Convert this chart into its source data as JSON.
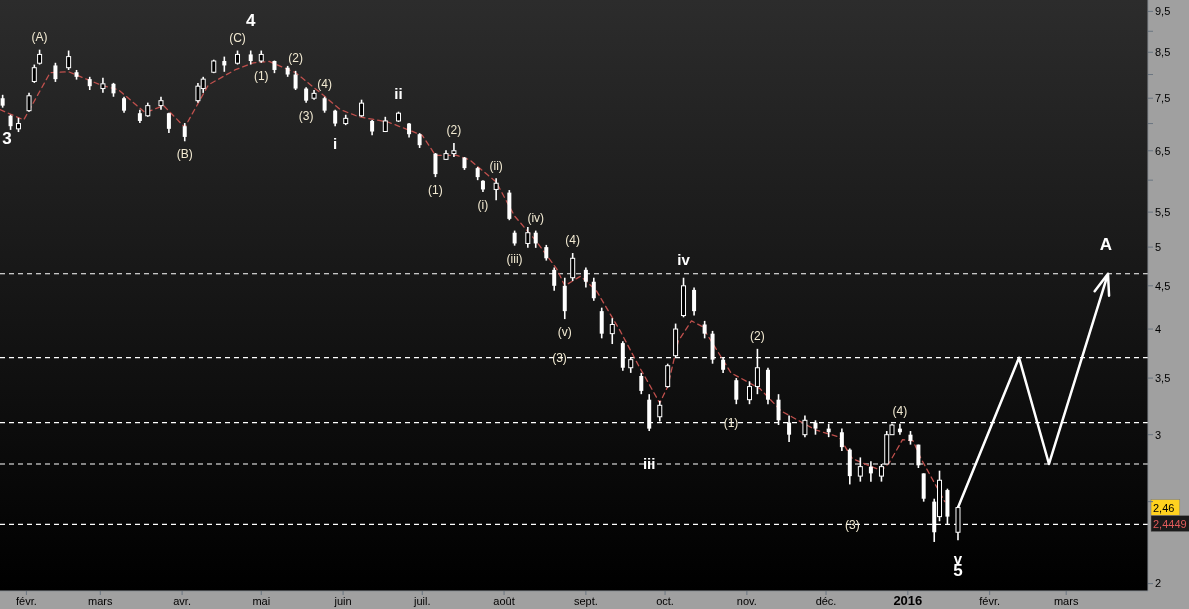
{
  "chart_data": {
    "type": "candlestick",
    "log": "y",
    "x": [
      "2015-01-23",
      "2015-01-26",
      "2015-01-29",
      "2015-02-02",
      "2015-02-04",
      "2015-02-06",
      "2015-02-12",
      "2015-02-17",
      "2015-02-20",
      "2015-02-25",
      "2015-03-02",
      "2015-03-06",
      "2015-03-10",
      "2015-03-16",
      "2015-03-19",
      "2015-03-24",
      "2015-03-27",
      "2015-04-02",
      "2015-04-07",
      "2015-04-09",
      "2015-04-13",
      "2015-04-17",
      "2015-04-22",
      "2015-04-27",
      "2015-05-01",
      "2015-05-06",
      "2015-05-11",
      "2015-05-14",
      "2015-05-18",
      "2015-05-21",
      "2015-05-25",
      "2015-05-29",
      "2015-06-02",
      "2015-06-08",
      "2015-06-12",
      "2015-06-17",
      "2015-06-22",
      "2015-06-26",
      "2015-06-30",
      "2015-07-06",
      "2015-07-10",
      "2015-07-13",
      "2015-07-17",
      "2015-07-22",
      "2015-07-24",
      "2015-07-29",
      "2015-08-03",
      "2015-08-05",
      "2015-08-10",
      "2015-08-13",
      "2015-08-17",
      "2015-08-20",
      "2015-08-24",
      "2015-08-27",
      "2015-09-01",
      "2015-09-04",
      "2015-09-07",
      "2015-09-11",
      "2015-09-15",
      "2015-09-18",
      "2015-09-22",
      "2015-09-25",
      "2015-09-29",
      "2015-10-02",
      "2015-10-05",
      "2015-10-08",
      "2015-10-12",
      "2015-10-16",
      "2015-10-19",
      "2015-10-23",
      "2015-10-28",
      "2015-11-02",
      "2015-11-05",
      "2015-11-09",
      "2015-11-13",
      "2015-11-17",
      "2015-11-23",
      "2015-11-27",
      "2015-12-02",
      "2015-12-07",
      "2015-12-10",
      "2015-12-14",
      "2015-12-18",
      "2015-12-22",
      "2015-12-24",
      "2015-12-26",
      "2015-12-29",
      "2016-01-02",
      "2016-01-05",
      "2016-01-07",
      "2016-01-11",
      "2016-01-13",
      "2016-01-16",
      "2016-01-20"
    ],
    "ohlc": [
      [
        7.5,
        7.57,
        7.31,
        7.35
      ],
      [
        7.15,
        7.17,
        6.88,
        6.95
      ],
      [
        6.9,
        7.11,
        6.84,
        7.0
      ],
      [
        7.25,
        7.61,
        7.23,
        7.55
      ],
      [
        7.85,
        8.22,
        7.82,
        8.15
      ],
      [
        8.25,
        8.56,
        8.22,
        8.45
      ],
      [
        8.2,
        8.26,
        7.84,
        7.9
      ],
      [
        8.15,
        8.54,
        8.1,
        8.4
      ],
      [
        8.05,
        8.1,
        7.89,
        7.95
      ],
      [
        7.9,
        7.95,
        7.67,
        7.75
      ],
      [
        7.7,
        7.93,
        7.61,
        7.8
      ],
      [
        7.8,
        7.82,
        7.53,
        7.6
      ],
      [
        7.5,
        7.53,
        7.21,
        7.25
      ],
      [
        7.2,
        7.27,
        7.01,
        7.05
      ],
      [
        7.15,
        7.41,
        7.13,
        7.35
      ],
      [
        7.35,
        7.53,
        7.27,
        7.45
      ],
      [
        7.2,
        7.21,
        6.82,
        6.9
      ],
      [
        6.95,
        7.01,
        6.67,
        6.75
      ],
      [
        7.45,
        7.82,
        7.41,
        7.75
      ],
      [
        7.7,
        7.95,
        7.61,
        7.9
      ],
      [
        8.05,
        8.33,
        8.03,
        8.3
      ],
      [
        8.3,
        8.4,
        8.06,
        8.2
      ],
      [
        8.25,
        8.54,
        8.22,
        8.45
      ],
      [
        8.45,
        8.54,
        8.22,
        8.3
      ],
      [
        8.3,
        8.54,
        8.26,
        8.45
      ],
      [
        8.3,
        8.31,
        8.03,
        8.1
      ],
      [
        8.15,
        8.19,
        7.95,
        8.0
      ],
      [
        8.0,
        8.08,
        7.67,
        7.7
      ],
      [
        7.7,
        7.73,
        7.41,
        7.45
      ],
      [
        7.5,
        7.67,
        7.47,
        7.6
      ],
      [
        7.5,
        7.53,
        7.21,
        7.25
      ],
      [
        7.25,
        7.27,
        6.95,
        7.0
      ],
      [
        7.0,
        7.17,
        6.97,
        7.1
      ],
      [
        7.15,
        7.47,
        7.13,
        7.4
      ],
      [
        7.05,
        7.07,
        6.78,
        6.85
      ],
      [
        6.85,
        7.13,
        6.84,
        7.05
      ],
      [
        7.05,
        7.23,
        7.03,
        7.2
      ],
      [
        7.0,
        7.01,
        6.74,
        6.8
      ],
      [
        6.8,
        6.82,
        6.55,
        6.6
      ],
      [
        6.45,
        6.46,
        6.05,
        6.1
      ],
      [
        6.35,
        6.51,
        6.34,
        6.45
      ],
      [
        6.45,
        6.64,
        6.39,
        6.5
      ],
      [
        6.38,
        6.39,
        6.17,
        6.2
      ],
      [
        6.2,
        6.22,
        6.0,
        6.05
      ],
      [
        5.99,
        6.0,
        5.81,
        5.85
      ],
      [
        5.85,
        6.03,
        5.68,
        5.95
      ],
      [
        5.8,
        5.84,
        5.38,
        5.4
      ],
      [
        5.2,
        5.23,
        5.02,
        5.05
      ],
      [
        5.05,
        5.28,
        4.99,
        5.2
      ],
      [
        5.2,
        5.23,
        4.99,
        5.05
      ],
      [
        5.0,
        5.03,
        4.82,
        4.85
      ],
      [
        4.7,
        4.73,
        4.44,
        4.5
      ],
      [
        4.5,
        4.6,
        4.11,
        4.2
      ],
      [
        4.6,
        4.92,
        4.56,
        4.85
      ],
      [
        4.7,
        4.73,
        4.48,
        4.55
      ],
      [
        4.55,
        4.6,
        4.32,
        4.35
      ],
      [
        4.2,
        4.24,
        3.9,
        3.95
      ],
      [
        3.95,
        4.12,
        3.84,
        4.05
      ],
      [
        3.85,
        3.87,
        3.57,
        3.6
      ],
      [
        3.6,
        3.7,
        3.55,
        3.68
      ],
      [
        3.52,
        3.55,
        3.35,
        3.38
      ],
      [
        3.3,
        3.35,
        3.03,
        3.05
      ],
      [
        3.15,
        3.29,
        3.11,
        3.25
      ],
      [
        3.42,
        3.64,
        3.41,
        3.62
      ],
      [
        3.72,
        4.06,
        3.7,
        4.0
      ],
      [
        4.15,
        4.6,
        4.13,
        4.5
      ],
      [
        4.45,
        4.48,
        4.15,
        4.2
      ],
      [
        4.05,
        4.09,
        3.9,
        3.95
      ],
      [
        3.95,
        3.98,
        3.64,
        3.68
      ],
      [
        3.68,
        3.7,
        3.55,
        3.58
      ],
      [
        3.48,
        3.5,
        3.26,
        3.3
      ],
      [
        3.3,
        3.47,
        3.26,
        3.42
      ],
      [
        3.42,
        3.79,
        3.35,
        3.6
      ],
      [
        3.58,
        3.6,
        3.26,
        3.3
      ],
      [
        3.3,
        3.35,
        3.08,
        3.12
      ],
      [
        3.1,
        3.16,
        2.94,
        3.0
      ],
      [
        3.0,
        3.16,
        2.98,
        3.12
      ],
      [
        3.1,
        3.12,
        3.0,
        3.05
      ],
      [
        3.05,
        3.09,
        2.98,
        3.02
      ],
      [
        3.02,
        3.05,
        2.87,
        2.9
      ],
      [
        2.88,
        2.89,
        2.62,
        2.68
      ],
      [
        2.68,
        2.82,
        2.64,
        2.75
      ],
      [
        2.75,
        2.79,
        2.64,
        2.7
      ],
      [
        2.68,
        2.77,
        2.64,
        2.75
      ],
      [
        2.77,
        3.03,
        2.77,
        3.0
      ],
      [
        3.0,
        3.09,
        3.0,
        3.08
      ],
      [
        3.05,
        3.09,
        3.0,
        3.02
      ],
      [
        3.0,
        3.03,
        2.92,
        2.95
      ],
      [
        2.92,
        2.92,
        2.74,
        2.76
      ],
      [
        2.7,
        2.7,
        2.5,
        2.52
      ],
      [
        2.5,
        2.52,
        2.24,
        2.3
      ],
      [
        2.4,
        2.72,
        2.37,
        2.65
      ],
      [
        2.58,
        2.59,
        2.35,
        2.4
      ],
      [
        2.3,
        2.47,
        2.25,
        2.46
      ]
    ],
    "color": "#ffffff",
    "series": [
      {
        "type": "line",
        "color": "#c0504d",
        "line_style": "dashed",
        "x": [
          "2015-01-22",
          "2015-01-31",
          "2015-02-10",
          "2015-02-17",
          "2015-03-01",
          "2015-03-08",
          "2015-03-18",
          "2015-03-25",
          "2015-04-02",
          "2015-04-11",
          "2015-04-21",
          "2015-04-28",
          "2015-05-04",
          "2015-05-14",
          "2015-05-23",
          "2015-05-31",
          "2015-06-07",
          "2015-06-18",
          "2015-07-01",
          "2015-07-06",
          "2015-07-14",
          "2015-07-19",
          "2015-07-29",
          "2015-08-05",
          "2015-08-13",
          "2015-08-21",
          "2015-08-24",
          "2015-08-30",
          "2015-09-05",
          "2015-09-14",
          "2015-09-21",
          "2015-09-29",
          "2015-10-02",
          "2015-10-06",
          "2015-10-11",
          "2015-10-15",
          "2015-10-26",
          "2015-11-06",
          "2015-11-14",
          "2015-11-27",
          "2015-12-06",
          "2015-12-11",
          "2015-12-22",
          "2015-12-25",
          "2015-12-30",
          "2016-01-03",
          "2016-01-06",
          "2016-01-15"
        ],
        "values": [
          7.27,
          7.07,
          8.04,
          8.06,
          7.78,
          7.67,
          7.21,
          7.35,
          6.93,
          7.78,
          8.1,
          8.26,
          8.29,
          8.04,
          7.63,
          7.27,
          7.13,
          7.03,
          6.78,
          6.42,
          6.42,
          6.34,
          5.97,
          5.44,
          5.09,
          4.71,
          4.5,
          4.62,
          4.44,
          3.98,
          3.62,
          3.27,
          3.42,
          3.87,
          4.09,
          4.03,
          3.55,
          3.4,
          3.2,
          3.04,
          2.98,
          2.81,
          2.72,
          2.78,
          2.96,
          2.95,
          2.81,
          2.5
        ]
      }
    ],
    "xlim": [
      "2015-01-22",
      "2016-04-01"
    ],
    "xticks": [
      {
        "value": "2015-02-01",
        "label": "févr."
      },
      {
        "value": "2015-03-01",
        "label": "mars"
      },
      {
        "value": "2015-04-01",
        "label": "avr."
      },
      {
        "value": "2015-05-01",
        "label": "mai"
      },
      {
        "value": "2015-06-01",
        "label": "juin"
      },
      {
        "value": "2015-07-01",
        "label": "juil."
      },
      {
        "value": "2015-08-01",
        "label": "août"
      },
      {
        "value": "2015-09-01",
        "label": "sept."
      },
      {
        "value": "2015-10-01",
        "label": "oct."
      },
      {
        "value": "2015-11-01",
        "label": "nov."
      },
      {
        "value": "2015-12-01",
        "label": "déc."
      },
      {
        "value": "2016-01-01",
        "label": "2016"
      },
      {
        "value": "2016-02-01",
        "label": "févr."
      },
      {
        "value": "2016-03-01",
        "label": "mars"
      }
    ],
    "ylim": [
      1.96,
      9.8
    ],
    "yticks": [
      {
        "value": 9.5,
        "label": "9,5"
      },
      {
        "value": 9,
        "label": null
      },
      {
        "value": 8.5,
        "label": "8,5"
      },
      {
        "value": 8,
        "label": null
      },
      {
        "value": 7.5,
        "label": "7,5"
      },
      {
        "value": 7,
        "label": null
      },
      {
        "value": 6.5,
        "label": "6,5"
      },
      {
        "value": 6,
        "label": null
      },
      {
        "value": 5.5,
        "label": "5,5"
      },
      5,
      {
        "value": 4.5,
        "label": "4,5"
      },
      4,
      {
        "value": 3.5,
        "label": "3,5"
      },
      3,
      {
        "value": 2.5,
        "label": null
      },
      2
    ],
    "ref_lines": [
      {
        "axis": "y",
        "value": 4.65,
        "color": "#ffffff",
        "line_style": "dashed"
      },
      {
        "axis": "y",
        "value": 3.7,
        "color": "#ffffff",
        "line_style": "dashed"
      },
      {
        "axis": "y",
        "value": 3.1,
        "color": "#ffffff",
        "line_style": "dashed"
      },
      {
        "axis": "y",
        "value": 2.77,
        "color": "#ffffff",
        "line_style": "dashed"
      },
      {
        "axis": "y",
        "value": 2.35,
        "color": "#ffffff",
        "line_style": "dashed"
      }
    ],
    "annotations": [
      {
        "text": "3",
        "x": "2015-01-23",
        "y": 7.31
      },
      {
        "text": "4",
        "x": "2015-04-27",
        "y": 8.54
      },
      {
        "text": "5",
        "x": "2016-01-20",
        "y": 2.25
      },
      {
        "text": "A",
        "x": "2016-03-16",
        "y": 4.65
      },
      {
        "text": "i",
        "x": "2015-05-29",
        "y": 6.95
      },
      {
        "text": "ii",
        "x": "2015-06-22",
        "y": 7.23
      },
      {
        "text": "iii",
        "x": "2015-09-25",
        "y": 2.77
      },
      {
        "text": "iv",
        "x": "2015-10-08",
        "y": 4.6
      },
      {
        "text": "v",
        "x": "2016-01-20",
        "y": 2.25
      },
      {
        "text": "(A)",
        "x": "2015-02-06",
        "y": 8.56
      },
      {
        "text": "(B)",
        "x": "2015-04-02",
        "y": 6.67
      },
      {
        "text": "(C)",
        "x": "2015-04-22",
        "y": 8.54
      },
      {
        "text": "(1)",
        "x": "2015-05-01",
        "y": 8.26
      },
      {
        "text": "(2)",
        "x": "2015-05-14",
        "y": 8.08
      },
      {
        "text": "(3)",
        "x": "2015-05-18",
        "y": 7.41
      },
      {
        "text": "(4)",
        "x": "2015-05-25",
        "y": 7.53
      },
      {
        "text": "(1)",
        "x": "2015-07-06",
        "y": 6.05
      },
      {
        "text": "(2)",
        "x": "2015-07-13",
        "y": 6.64
      },
      {
        "text": "(i)",
        "x": "2015-07-24",
        "y": 5.81
      },
      {
        "text": "(ii)",
        "x": "2015-07-29",
        "y": 6.03
      },
      {
        "text": "(iii)",
        "x": "2015-08-05",
        "y": 5.02
      },
      {
        "text": "(iv)",
        "x": "2015-08-13",
        "y": 5.23
      },
      {
        "text": "(v)",
        "x": "2015-08-24",
        "y": 4.11
      },
      {
        "text": "(3)",
        "x": "2015-08-22",
        "y": 3.7
      },
      {
        "text": "(4)",
        "x": "2015-08-27",
        "y": 4.92
      },
      {
        "text": "(1)",
        "x": "2015-10-26",
        "y": 3.1
      },
      {
        "text": "(2)",
        "x": "2015-11-05",
        "y": 3.79
      },
      {
        "text": "(3)",
        "x": "2015-12-11",
        "y": 2.35
      },
      {
        "text": "(4)",
        "x": "2015-12-29",
        "y": 3.09
      },
      {
        "text": "2,46",
        "y": 2.46
      },
      "2,4449"
    ]
  }
}
